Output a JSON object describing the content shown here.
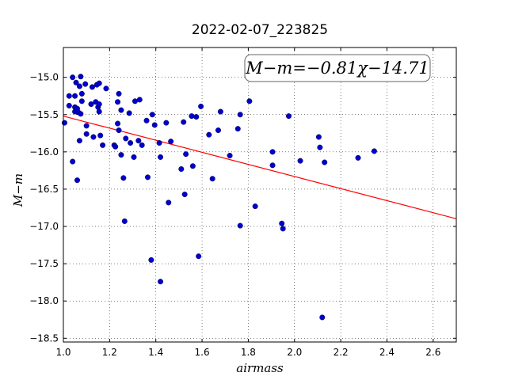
{
  "chart_data": {
    "type": "scatter",
    "title": "2022-02-07_223825",
    "xlabel": "airmass",
    "ylabel": "M−m",
    "xlim": [
      1.0,
      2.7
    ],
    "ylim": [
      -18.55,
      -14.6
    ],
    "y_inverted": true,
    "grid": true,
    "x_ticks": [
      1.0,
      1.2,
      1.4,
      1.6,
      1.8,
      2.0,
      2.2,
      2.4,
      2.6
    ],
    "x_tick_labels": [
      "1.0",
      "1.2",
      "1.4",
      "1.6",
      "1.8",
      "2.0",
      "2.2",
      "2.4",
      "2.6"
    ],
    "y_ticks": [
      -15.0,
      -15.5,
      -16.0,
      -16.5,
      -17.0,
      -17.5,
      -18.0,
      -18.5
    ],
    "y_tick_labels": [
      "−15.0",
      "−15.5",
      "−16.0",
      "−16.5",
      "−17.0",
      "−17.5",
      "−18.0",
      "−18.5"
    ],
    "annotation": "M−m=−0.81χ−14.71",
    "annotation_placement": "top-right",
    "fit": {
      "slope": -0.81,
      "intercept": -14.71,
      "color": "#ff0000"
    },
    "marker_color": "#0000cc",
    "points": [
      {
        "x": 1.005,
        "y": -15.61
      },
      {
        "x": 1.025,
        "y": -15.25
      },
      {
        "x": 1.025,
        "y": -15.38
      },
      {
        "x": 1.04,
        "y": -15.0
      },
      {
        "x": 1.04,
        "y": -16.13
      },
      {
        "x": 1.05,
        "y": -15.4
      },
      {
        "x": 1.05,
        "y": -15.46
      },
      {
        "x": 1.05,
        "y": -15.25
      },
      {
        "x": 1.055,
        "y": -15.07
      },
      {
        "x": 1.06,
        "y": -15.42
      },
      {
        "x": 1.06,
        "y": -16.38
      },
      {
        "x": 1.065,
        "y": -15.47
      },
      {
        "x": 1.07,
        "y": -15.12
      },
      {
        "x": 1.07,
        "y": -15.85
      },
      {
        "x": 1.075,
        "y": -14.99
      },
      {
        "x": 1.075,
        "y": -15.49
      },
      {
        "x": 1.08,
        "y": -15.22
      },
      {
        "x": 1.08,
        "y": -15.32
      },
      {
        "x": 1.095,
        "y": -15.09
      },
      {
        "x": 1.1,
        "y": -15.65
      },
      {
        "x": 1.1,
        "y": -15.76
      },
      {
        "x": 1.12,
        "y": -15.36
      },
      {
        "x": 1.125,
        "y": -15.13
      },
      {
        "x": 1.13,
        "y": -15.8
      },
      {
        "x": 1.14,
        "y": -15.33
      },
      {
        "x": 1.145,
        "y": -15.1
      },
      {
        "x": 1.15,
        "y": -15.4
      },
      {
        "x": 1.155,
        "y": -15.08
      },
      {
        "x": 1.155,
        "y": -15.36
      },
      {
        "x": 1.155,
        "y": -15.46
      },
      {
        "x": 1.16,
        "y": -15.78
      },
      {
        "x": 1.17,
        "y": -15.91
      },
      {
        "x": 1.185,
        "y": -15.15
      },
      {
        "x": 1.22,
        "y": -15.91
      },
      {
        "x": 1.225,
        "y": -15.93
      },
      {
        "x": 1.235,
        "y": -15.33
      },
      {
        "x": 1.235,
        "y": -15.62
      },
      {
        "x": 1.24,
        "y": -15.22
      },
      {
        "x": 1.24,
        "y": -15.71
      },
      {
        "x": 1.25,
        "y": -15.44
      },
      {
        "x": 1.25,
        "y": -16.04
      },
      {
        "x": 1.26,
        "y": -16.35
      },
      {
        "x": 1.265,
        "y": -16.93
      },
      {
        "x": 1.27,
        "y": -15.82
      },
      {
        "x": 1.285,
        "y": -15.48
      },
      {
        "x": 1.29,
        "y": -15.88
      },
      {
        "x": 1.305,
        "y": -16.07
      },
      {
        "x": 1.31,
        "y": -15.32
      },
      {
        "x": 1.325,
        "y": -15.85
      },
      {
        "x": 1.33,
        "y": -15.3
      },
      {
        "x": 1.34,
        "y": -15.91
      },
      {
        "x": 1.36,
        "y": -15.58
      },
      {
        "x": 1.365,
        "y": -16.34
      },
      {
        "x": 1.38,
        "y": -17.45
      },
      {
        "x": 1.385,
        "y": -15.5
      },
      {
        "x": 1.395,
        "y": -15.64
      },
      {
        "x": 1.415,
        "y": -15.88
      },
      {
        "x": 1.42,
        "y": -16.07
      },
      {
        "x": 1.42,
        "y": -17.74
      },
      {
        "x": 1.445,
        "y": -15.61
      },
      {
        "x": 1.455,
        "y": -16.68
      },
      {
        "x": 1.465,
        "y": -15.86
      },
      {
        "x": 1.51,
        "y": -16.23
      },
      {
        "x": 1.52,
        "y": -15.6
      },
      {
        "x": 1.525,
        "y": -16.57
      },
      {
        "x": 1.53,
        "y": -16.03
      },
      {
        "x": 1.555,
        "y": -15.52
      },
      {
        "x": 1.56,
        "y": -16.19
      },
      {
        "x": 1.575,
        "y": -15.53
      },
      {
        "x": 1.585,
        "y": -17.4
      },
      {
        "x": 1.595,
        "y": -15.39
      },
      {
        "x": 1.63,
        "y": -15.77
      },
      {
        "x": 1.645,
        "y": -16.36
      },
      {
        "x": 1.67,
        "y": -15.71
      },
      {
        "x": 1.68,
        "y": -15.46
      },
      {
        "x": 1.72,
        "y": -16.05
      },
      {
        "x": 1.755,
        "y": -15.69
      },
      {
        "x": 1.765,
        "y": -15.5
      },
      {
        "x": 1.765,
        "y": -16.99
      },
      {
        "x": 1.805,
        "y": -15.32
      },
      {
        "x": 1.83,
        "y": -16.73
      },
      {
        "x": 1.905,
        "y": -16.0
      },
      {
        "x": 1.905,
        "y": -16.18
      },
      {
        "x": 1.945,
        "y": -16.96
      },
      {
        "x": 1.95,
        "y": -17.03
      },
      {
        "x": 1.975,
        "y": -15.52
      },
      {
        "x": 2.025,
        "y": -16.12
      },
      {
        "x": 2.105,
        "y": -15.8
      },
      {
        "x": 2.11,
        "y": -15.94
      },
      {
        "x": 2.12,
        "y": -18.22
      },
      {
        "x": 2.13,
        "y": -16.14
      },
      {
        "x": 2.275,
        "y": -16.08
      },
      {
        "x": 2.345,
        "y": -15.99
      }
    ]
  }
}
